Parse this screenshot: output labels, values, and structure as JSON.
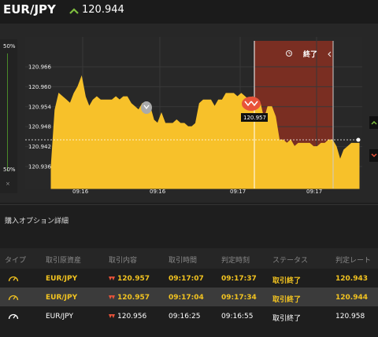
{
  "header": {
    "pair": "EUR/JPY",
    "price": "120.944"
  },
  "chart": {
    "left_scale_top": "50%",
    "left_scale_bottom": "50%",
    "collapse_label": "×",
    "y_ticks": [
      "120.966",
      "120.960",
      "120.954",
      "120.948",
      "120.942",
      "120.936"
    ],
    "x_ticks": [
      "09:16",
      "09:16",
      "09:17",
      "09:17"
    ],
    "end_label": "終了",
    "tooltip_value": "120.957",
    "current_price_line": "120.944"
  },
  "chart_data": {
    "type": "area",
    "ylim": [
      120.932,
      120.97
    ],
    "series": [
      {
        "values": [
          120.936,
          120.953,
          120.958,
          120.957,
          120.956,
          120.955,
          120.958,
          120.96,
          120.963,
          120.957,
          120.954,
          120.956,
          120.957,
          120.956,
          120.956,
          120.956,
          120.956,
          120.957,
          120.956,
          120.957,
          120.957,
          120.955,
          120.954,
          120.953,
          120.955,
          120.954,
          120.954,
          120.95,
          120.949,
          120.952,
          120.949,
          120.949,
          120.949,
          120.95,
          120.949,
          120.949,
          120.948,
          120.948,
          120.949,
          120.955,
          120.956,
          120.956,
          120.956,
          120.954,
          120.956,
          120.956,
          120.958,
          120.958,
          120.958,
          120.957,
          120.958,
          120.957,
          120.956,
          120.957,
          120.955,
          120.955,
          120.95,
          120.954,
          120.954,
          120.951,
          120.944,
          120.944,
          120.943,
          120.944,
          120.942,
          120.943,
          120.943,
          120.943,
          120.943,
          120.942,
          120.942,
          120.943,
          120.943,
          120.944,
          120.944,
          120.942,
          120.938,
          120.941,
          120.942,
          120.943,
          120.943,
          120.943
        ]
      }
    ]
  },
  "section": {
    "title": "購入オプション詳細"
  },
  "table": {
    "headers": [
      "タイプ",
      "取引原資産",
      "取引内容",
      "取引時間",
      "判定時刻",
      "ステータス",
      "判定レート"
    ],
    "rows": [
      {
        "asset": "EUR/JPY",
        "content": "120.957",
        "trade_time": "09:17:07",
        "judge_time": "09:17:37",
        "status": "取引終了",
        "rate": "120.943"
      },
      {
        "asset": "EUR/JPY",
        "content": "120.957",
        "trade_time": "09:17:04",
        "judge_time": "09:17:34",
        "status": "取引終了",
        "rate": "120.944"
      },
      {
        "asset": "EUR/JPY",
        "content": "120.956",
        "trade_time": "09:16:25",
        "judge_time": "09:16:55",
        "status": "取引終了",
        "rate": "120.958"
      }
    ]
  },
  "colors": {
    "area": "#f7c12a",
    "accent_green": "#7fbf3f",
    "down_red": "#e8533a",
    "expiry_zone": "#7a2e22"
  }
}
